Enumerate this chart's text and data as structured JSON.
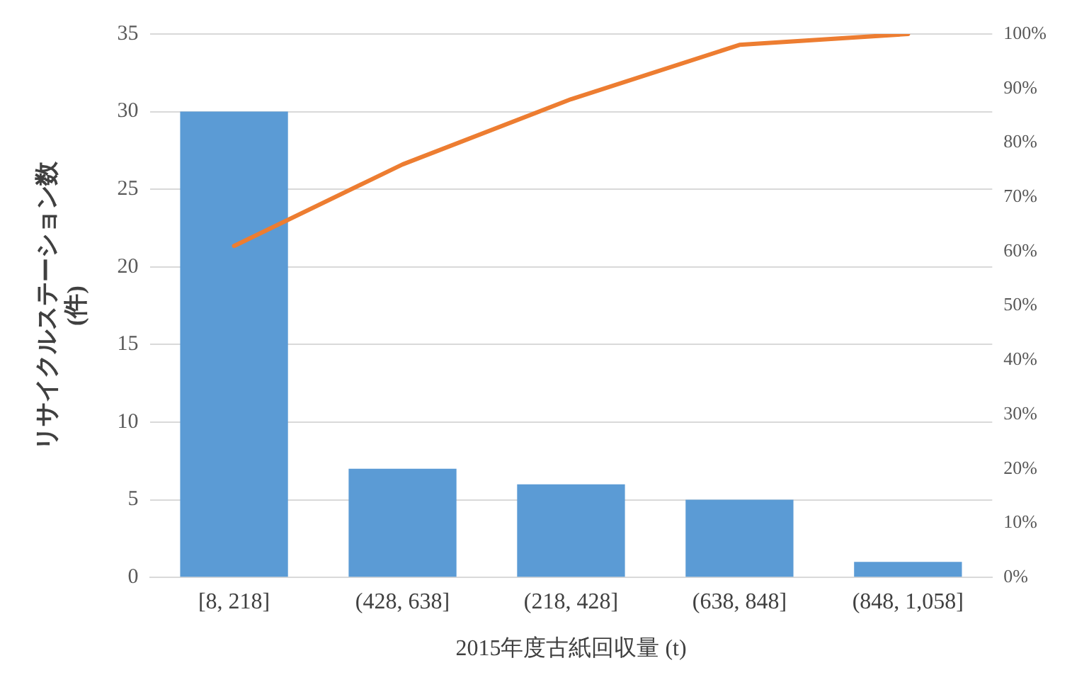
{
  "chart_data": {
    "type": "bar",
    "xlabel": "2015年度古紙回収量 (t)",
    "ylabel": "リサイクルステーション数\n(件)",
    "categories": [
      "[8, 218]",
      "(428, 638]",
      "(218, 428]",
      "(638, 848]",
      "(848, 1,058]"
    ],
    "series": [
      {
        "color": "#5b9bd5",
        "values": [
          30,
          7,
          6,
          5,
          1
        ]
      },
      {
        "type": "line",
        "axis": "y2",
        "color": "#ed7d31",
        "values": [
          61,
          76,
          88,
          98,
          100
        ]
      }
    ],
    "ylim": [
      0,
      35
    ],
    "yticks": [
      0,
      5,
      10,
      15,
      20,
      25,
      30,
      35
    ],
    "y2lim": [
      0,
      100
    ],
    "y2ticks": [
      {
        "value": 0,
        "label": "0%"
      },
      {
        "value": 10,
        "label": "10%"
      },
      {
        "value": 20,
        "label": "20%"
      },
      {
        "value": 30,
        "label": "30%"
      },
      {
        "value": 40,
        "label": "40%"
      },
      {
        "value": 50,
        "label": "50%"
      },
      {
        "value": 60,
        "label": "60%"
      },
      {
        "value": 70,
        "label": "70%"
      },
      {
        "value": 80,
        "label": "80%"
      },
      {
        "value": 90,
        "label": "90%"
      },
      {
        "value": 100,
        "label": "100%"
      }
    ],
    "grid": "y",
    "legend": false,
    "marker": "none",
    "line_style": "solid"
  }
}
